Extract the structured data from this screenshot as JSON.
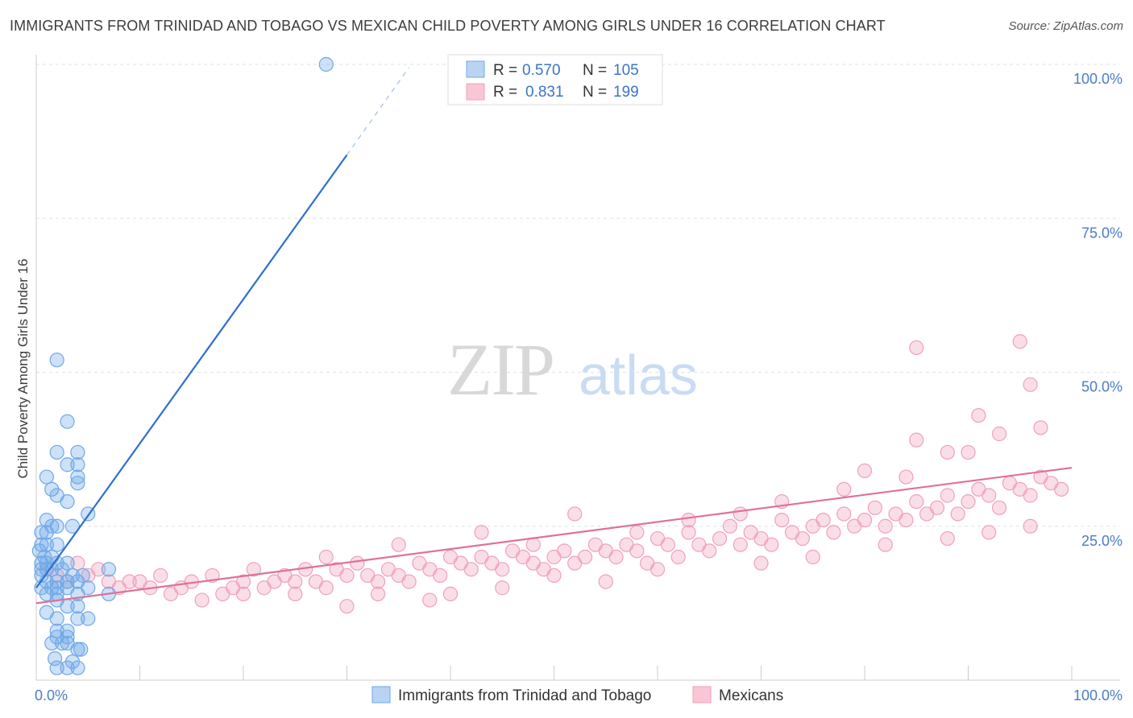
{
  "title": "IMMIGRANTS FROM TRINIDAD AND TOBAGO VS MEXICAN CHILD POVERTY AMONG GIRLS UNDER 16 CORRELATION CHART",
  "source": "Source: ZipAtlas.com",
  "watermark": {
    "zip": "ZIP",
    "atlas": "atlas"
  },
  "legend": {
    "r_label": "R =",
    "n_label": "N =",
    "rows": [
      {
        "r": "0.570",
        "n": "105"
      },
      {
        "r": "0.831",
        "n": "199"
      }
    ]
  },
  "colors": {
    "blue": "#6fa8e8",
    "blue_line": "#2e6fd0",
    "pink": "#f0a0bb",
    "pink_line": "#e0709a",
    "tick_text": "#4a7cc9"
  },
  "chart_data": {
    "type": "scatter",
    "xlabel": "",
    "ylabel": "Child Poverty Among Girls Under 16",
    "x_tick_labels": [
      "0.0%",
      "100.0%"
    ],
    "y_tick_labels": [
      "25.0%",
      "50.0%",
      "75.0%",
      "100.0%"
    ],
    "xlim": [
      0,
      100
    ],
    "ylim": [
      0,
      100
    ],
    "grid": "horizontal dashed",
    "legend_position": "top-center",
    "series": [
      {
        "name": "Immigrants from Trinidad and Tobago",
        "color": "#6fa8e8",
        "trend": {
          "x0": 0,
          "y0": 15.0,
          "x1": 30,
          "y1": 85.3,
          "dashed_to_x": 36,
          "dashed_to_y": 99.5
        },
        "points": [
          [
            28,
            100
          ],
          [
            2,
            52
          ],
          [
            3,
            42
          ],
          [
            2,
            37
          ],
          [
            4,
            37
          ],
          [
            3,
            35
          ],
          [
            4,
            35
          ],
          [
            4,
            33
          ],
          [
            1,
            33
          ],
          [
            4,
            32
          ],
          [
            1.5,
            31
          ],
          [
            2,
            30
          ],
          [
            3,
            29
          ],
          [
            1,
            26
          ],
          [
            1.5,
            25
          ],
          [
            2,
            25
          ],
          [
            0.5,
            24
          ],
          [
            1,
            24
          ],
          [
            3.5,
            25
          ],
          [
            5,
            27
          ],
          [
            0.5,
            22
          ],
          [
            1,
            22
          ],
          [
            2,
            22
          ],
          [
            0.3,
            21
          ],
          [
            0.8,
            20
          ],
          [
            1.5,
            20
          ],
          [
            0.5,
            19
          ],
          [
            1,
            19
          ],
          [
            2,
            19
          ],
          [
            3,
            19
          ],
          [
            0.5,
            18
          ],
          [
            1,
            18
          ],
          [
            1.5,
            18
          ],
          [
            2.5,
            18
          ],
          [
            3.5,
            17
          ],
          [
            4.5,
            17
          ],
          [
            7,
            18
          ],
          [
            0.5,
            17
          ],
          [
            1,
            16
          ],
          [
            2,
            16
          ],
          [
            3,
            16
          ],
          [
            4,
            16
          ],
          [
            0.5,
            15
          ],
          [
            1.5,
            15
          ],
          [
            2,
            15
          ],
          [
            3,
            15
          ],
          [
            5,
            15
          ],
          [
            1,
            14
          ],
          [
            2,
            14
          ],
          [
            4,
            14
          ],
          [
            7,
            14
          ],
          [
            2,
            13
          ],
          [
            3,
            12
          ],
          [
            4,
            12
          ],
          [
            1,
            11
          ],
          [
            2,
            10
          ],
          [
            4,
            10
          ],
          [
            5,
            10
          ],
          [
            2,
            8
          ],
          [
            3,
            8
          ],
          [
            2,
            7
          ],
          [
            3,
            7
          ],
          [
            1.5,
            6
          ],
          [
            2.5,
            6
          ],
          [
            3,
            6
          ],
          [
            4,
            5
          ],
          [
            4.3,
            5
          ],
          [
            1.8,
            3.5
          ],
          [
            3.5,
            3
          ],
          [
            2,
            2
          ],
          [
            3,
            2
          ],
          [
            4,
            2
          ]
        ]
      },
      {
        "name": "Mexicans",
        "color": "#f0a0bb",
        "trend": {
          "x0": 0,
          "y0": 12.5,
          "x1": 100,
          "y1": 34.5
        },
        "points": [
          [
            1,
            18
          ],
          [
            2,
            17
          ],
          [
            3,
            16
          ],
          [
            4,
            19
          ],
          [
            5,
            17
          ],
          [
            6,
            18
          ],
          [
            7,
            16
          ],
          [
            8,
            15
          ],
          [
            9,
            16
          ],
          [
            10,
            16
          ],
          [
            11,
            15
          ],
          [
            12,
            17
          ],
          [
            13,
            14
          ],
          [
            14,
            15
          ],
          [
            15,
            16
          ],
          [
            16,
            13
          ],
          [
            17,
            17
          ],
          [
            18,
            14
          ],
          [
            19,
            15
          ],
          [
            20,
            16
          ],
          [
            21,
            18
          ],
          [
            22,
            15
          ],
          [
            23,
            16
          ],
          [
            24,
            17
          ],
          [
            25,
            14
          ],
          [
            26,
            18
          ],
          [
            27,
            16
          ],
          [
            28,
            15
          ],
          [
            29,
            18
          ],
          [
            30,
            17
          ],
          [
            31,
            19
          ],
          [
            32,
            17
          ],
          [
            33,
            16
          ],
          [
            34,
            18
          ],
          [
            35,
            17
          ],
          [
            36,
            16
          ],
          [
            37,
            19
          ],
          [
            38,
            18
          ],
          [
            39,
            17
          ],
          [
            40,
            20
          ],
          [
            41,
            19
          ],
          [
            42,
            18
          ],
          [
            43,
            20
          ],
          [
            44,
            19
          ],
          [
            45,
            18
          ],
          [
            46,
            21
          ],
          [
            47,
            20
          ],
          [
            48,
            19
          ],
          [
            49,
            18
          ],
          [
            50,
            20
          ],
          [
            51,
            21
          ],
          [
            52,
            19
          ],
          [
            53,
            20
          ],
          [
            54,
            22
          ],
          [
            55,
            21
          ],
          [
            56,
            20
          ],
          [
            57,
            22
          ],
          [
            58,
            21
          ],
          [
            59,
            19
          ],
          [
            60,
            23
          ],
          [
            61,
            22
          ],
          [
            62,
            20
          ],
          [
            63,
            24
          ],
          [
            64,
            22
          ],
          [
            65,
            21
          ],
          [
            66,
            23
          ],
          [
            67,
            25
          ],
          [
            68,
            22
          ],
          [
            69,
            24
          ],
          [
            70,
            23
          ],
          [
            71,
            22
          ],
          [
            72,
            26
          ],
          [
            73,
            24
          ],
          [
            74,
            23
          ],
          [
            75,
            25
          ],
          [
            76,
            26
          ],
          [
            77,
            24
          ],
          [
            78,
            27
          ],
          [
            79,
            25
          ],
          [
            80,
            26
          ],
          [
            81,
            28
          ],
          [
            82,
            25
          ],
          [
            83,
            27
          ],
          [
            84,
            26
          ],
          [
            85,
            29
          ],
          [
            86,
            27
          ],
          [
            87,
            28
          ],
          [
            88,
            30
          ],
          [
            89,
            27
          ],
          [
            90,
            29
          ],
          [
            91,
            31
          ],
          [
            92,
            30
          ],
          [
            93,
            28
          ],
          [
            94,
            32
          ],
          [
            95,
            31
          ],
          [
            96,
            30
          ],
          [
            97,
            33
          ],
          [
            98,
            32
          ],
          [
            99,
            31
          ],
          [
            20,
            14
          ],
          [
            25,
            16
          ],
          [
            33,
            14
          ],
          [
            38,
            13
          ],
          [
            45,
            15
          ],
          [
            50,
            17
          ],
          [
            55,
            16
          ],
          [
            60,
            18
          ],
          [
            70,
            19
          ],
          [
            75,
            20
          ],
          [
            82,
            22
          ],
          [
            88,
            23
          ],
          [
            92,
            24
          ],
          [
            96,
            25
          ],
          [
            30,
            12
          ],
          [
            40,
            14
          ],
          [
            35,
            22
          ],
          [
            43,
            24
          ],
          [
            52,
            27
          ],
          [
            63,
            26
          ],
          [
            72,
            29
          ],
          [
            78,
            31
          ],
          [
            84,
            33
          ],
          [
            88,
            37
          ],
          [
            93,
            40
          ],
          [
            97,
            41
          ],
          [
            85,
            39
          ],
          [
            91,
            43
          ],
          [
            95,
            55
          ],
          [
            85,
            54
          ],
          [
            96,
            48
          ],
          [
            90,
            37
          ],
          [
            80,
            34
          ],
          [
            68,
            27
          ],
          [
            58,
            24
          ],
          [
            48,
            22
          ],
          [
            28,
            20
          ]
        ]
      }
    ]
  },
  "bottom_legend": [
    "Immigrants from Trinidad and Tobago",
    "Mexicans"
  ]
}
